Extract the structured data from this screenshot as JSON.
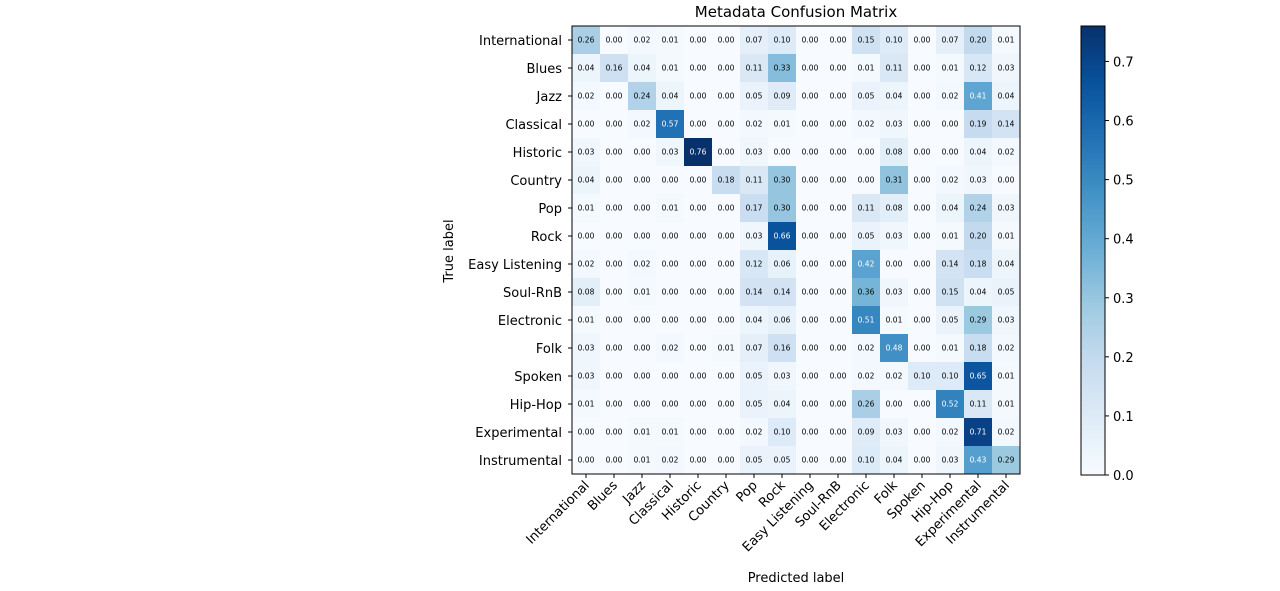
{
  "chart_data": {
    "type": "heatmap",
    "title": "Metadata Confusion Matrix",
    "xlabel": "Predicted label",
    "ylabel": "True label",
    "labels": [
      "International",
      "Blues",
      "Jazz",
      "Classical",
      "Historic",
      "Country",
      "Pop",
      "Rock",
      "Easy Listening",
      "Soul-RnB",
      "Electronic",
      "Folk",
      "Spoken",
      "Hip-Hop",
      "Experimental",
      "Instrumental"
    ],
    "matrix": [
      [
        0.26,
        0.0,
        0.02,
        0.01,
        0.0,
        0.0,
        0.07,
        0.1,
        0.0,
        0.0,
        0.15,
        0.1,
        0.0,
        0.07,
        0.2,
        0.01
      ],
      [
        0.04,
        0.16,
        0.04,
        0.01,
        0.0,
        0.0,
        0.11,
        0.33,
        0.0,
        0.0,
        0.01,
        0.11,
        0.0,
        0.01,
        0.12,
        0.03
      ],
      [
        0.02,
        0.0,
        0.24,
        0.04,
        0.0,
        0.0,
        0.05,
        0.09,
        0.0,
        0.0,
        0.05,
        0.04,
        0.0,
        0.02,
        0.41,
        0.04
      ],
      [
        0.0,
        0.0,
        0.02,
        0.57,
        0.0,
        0.0,
        0.02,
        0.01,
        0.0,
        0.0,
        0.02,
        0.03,
        0.0,
        0.0,
        0.19,
        0.14
      ],
      [
        0.03,
        0.0,
        0.0,
        0.03,
        0.76,
        0.0,
        0.03,
        0.0,
        0.0,
        0.0,
        0.0,
        0.08,
        0.0,
        0.0,
        0.04,
        0.02
      ],
      [
        0.04,
        0.0,
        0.0,
        0.0,
        0.0,
        0.18,
        0.11,
        0.3,
        0.0,
        0.0,
        0.0,
        0.31,
        0.0,
        0.02,
        0.03,
        0.0
      ],
      [
        0.01,
        0.0,
        0.0,
        0.01,
        0.0,
        0.0,
        0.17,
        0.3,
        0.0,
        0.0,
        0.11,
        0.08,
        0.0,
        0.04,
        0.24,
        0.03
      ],
      [
        0.0,
        0.0,
        0.0,
        0.0,
        0.0,
        0.0,
        0.03,
        0.66,
        0.0,
        0.0,
        0.05,
        0.03,
        0.0,
        0.01,
        0.2,
        0.01
      ],
      [
        0.02,
        0.0,
        0.02,
        0.0,
        0.0,
        0.0,
        0.12,
        0.06,
        0.0,
        0.0,
        0.42,
        0.0,
        0.0,
        0.14,
        0.18,
        0.04
      ],
      [
        0.08,
        0.0,
        0.01,
        0.0,
        0.0,
        0.0,
        0.14,
        0.14,
        0.0,
        0.0,
        0.36,
        0.03,
        0.0,
        0.15,
        0.04,
        0.05
      ],
      [
        0.01,
        0.0,
        0.0,
        0.0,
        0.0,
        0.0,
        0.04,
        0.06,
        0.0,
        0.0,
        0.51,
        0.01,
        0.0,
        0.05,
        0.29,
        0.03
      ],
      [
        0.03,
        0.0,
        0.0,
        0.02,
        0.0,
        0.01,
        0.07,
        0.16,
        0.0,
        0.0,
        0.02,
        0.48,
        0.0,
        0.01,
        0.18,
        0.02
      ],
      [
        0.03,
        0.0,
        0.0,
        0.0,
        0.0,
        0.0,
        0.05,
        0.03,
        0.0,
        0.0,
        0.02,
        0.02,
        0.1,
        0.1,
        0.65,
        0.01
      ],
      [
        0.01,
        0.0,
        0.0,
        0.0,
        0.0,
        0.0,
        0.05,
        0.04,
        0.0,
        0.0,
        0.26,
        0.0,
        0.0,
        0.52,
        0.11,
        0.01
      ],
      [
        0.0,
        0.0,
        0.01,
        0.01,
        0.0,
        0.0,
        0.02,
        0.1,
        0.0,
        0.0,
        0.09,
        0.03,
        0.0,
        0.02,
        0.71,
        0.02
      ],
      [
        0.0,
        0.0,
        0.01,
        0.02,
        0.0,
        0.0,
        0.05,
        0.05,
        0.0,
        0.0,
        0.1,
        0.04,
        0.0,
        0.03,
        0.43,
        0.29
      ]
    ],
    "colormap": "Blues",
    "colorbar_range": [
      0.0,
      0.76
    ],
    "colorbar_ticks": [
      0.0,
      0.1,
      0.2,
      0.3,
      0.4,
      0.5,
      0.6,
      0.7
    ],
    "colorbar_tick_labels": [
      "0.0",
      "0.1",
      "0.2",
      "0.3",
      "0.4",
      "0.5",
      "0.6",
      "0.7"
    ],
    "grid": false
  }
}
